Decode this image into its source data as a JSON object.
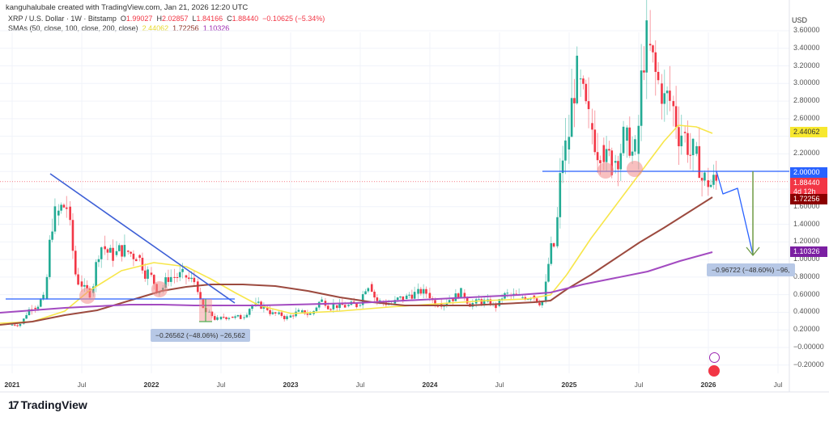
{
  "credit": "kanguhalubale created with TradingView.com, Jan 21, 2026 12:20 UTC",
  "legend": {
    "symbol": "XRP / U.S. Dollar · 1W · Bitstamp",
    "open_label": "O",
    "open": "1.99027",
    "high_label": "H",
    "high": "2.02857",
    "low_label": "L",
    "low": "1.84166",
    "close_label": "C",
    "close": "1.88440",
    "change": "−0.10625 (−5.34%)",
    "sma_label": "SMAs (50, close, 100, close, 200, close)",
    "sma50": "2.44062",
    "sma100": "1.72256",
    "sma200": "1.10326"
  },
  "axis": {
    "currency": "USD",
    "y_ticks": [
      "3.60000",
      "3.40000",
      "3.20000",
      "3.00000",
      "2.80000",
      "2.60000",
      "2.20000",
      "1.60000",
      "1.40000",
      "1.20000",
      "1.00000",
      "0.80000",
      "0.60000",
      "0.40000",
      "0.20000",
      "−0.00000",
      "−0.20000"
    ],
    "x_ticks": [
      {
        "label": "2021",
        "year": true
      },
      {
        "label": "Jul",
        "year": false
      },
      {
        "label": "2022",
        "year": true
      },
      {
        "label": "Jul",
        "year": false
      },
      {
        "label": "2023",
        "year": true
      },
      {
        "label": "Jul",
        "year": false
      },
      {
        "label": "2024",
        "year": true
      },
      {
        "label": "Jul",
        "year": false
      },
      {
        "label": "2025",
        "year": true
      },
      {
        "label": "Jul",
        "year": false
      },
      {
        "label": "2026",
        "year": true
      },
      {
        "label": "Jul",
        "year": false
      }
    ]
  },
  "price_tags": {
    "sma50": {
      "value": "2.44062",
      "color": "#f7e82f",
      "text_color": "#333333"
    },
    "level": {
      "value": "2.00000",
      "color": "#2962ff"
    },
    "close": {
      "value": "1.88440",
      "sub": "4d 12h",
      "color": "#f23645"
    },
    "sma100": {
      "value": "1.72256",
      "color": "#8b0000"
    },
    "sma200": {
      "value": "1.10326",
      "color": "#7b1fa2"
    }
  },
  "measurements": {
    "left": "−0.26562 (−48.06%) −26,562",
    "right": "−0.96722 (−48.60%) −96,"
  },
  "brand": {
    "logo": "17",
    "name": "TradingView"
  },
  "colors": {
    "up": "#22ab94",
    "down": "#f23645",
    "sma50": "#f7e64a",
    "sma100": "#9c4a3f",
    "sma200": "#a34bc1",
    "trendline": "#3d5fd6",
    "support": "#2962ff",
    "projection": "#2962ff",
    "target_arrow": "#6f9a44"
  },
  "chart_data": {
    "type": "candlestick",
    "title": "XRP / U.S. Dollar · 1W · Bitstamp",
    "xlabel": "",
    "ylabel": "USD",
    "ylim": [
      -0.3,
      3.7
    ],
    "x_range": [
      "2021-01",
      "2026-09"
    ],
    "grid": true,
    "series": [
      {
        "name": "XRP weekly (approx. closes)",
        "points": [
          [
            "2021-01",
            0.27
          ],
          [
            "2021-02",
            0.45
          ],
          [
            "2021-03",
            0.55
          ],
          [
            "2021-04",
            1.5
          ],
          [
            "2021-05",
            1.6
          ],
          [
            "2021-06",
            0.75
          ],
          [
            "2021-07",
            0.62
          ],
          [
            "2021-08",
            1.15
          ],
          [
            "2021-09",
            1.05
          ],
          [
            "2021-10",
            1.1
          ],
          [
            "2021-11",
            1.05
          ],
          [
            "2021-12",
            0.85
          ],
          [
            "2022-01",
            0.65
          ],
          [
            "2022-02",
            0.8
          ],
          [
            "2022-03",
            0.82
          ],
          [
            "2022-04",
            0.75
          ],
          [
            "2022-05",
            0.4
          ],
          [
            "2022-06",
            0.32
          ],
          [
            "2022-07",
            0.35
          ],
          [
            "2022-08",
            0.34
          ],
          [
            "2022-09",
            0.48
          ],
          [
            "2022-10",
            0.46
          ],
          [
            "2022-11",
            0.38
          ],
          [
            "2022-12",
            0.34
          ],
          [
            "2023-01",
            0.4
          ],
          [
            "2023-02",
            0.38
          ],
          [
            "2023-03",
            0.53
          ],
          [
            "2023-04",
            0.48
          ],
          [
            "2023-05",
            0.47
          ],
          [
            "2023-06",
            0.48
          ],
          [
            "2023-07",
            0.72
          ],
          [
            "2023-08",
            0.52
          ],
          [
            "2023-09",
            0.5
          ],
          [
            "2023-10",
            0.55
          ],
          [
            "2023-11",
            0.61
          ],
          [
            "2023-12",
            0.62
          ],
          [
            "2024-01",
            0.5
          ],
          [
            "2024-02",
            0.55
          ],
          [
            "2024-03",
            0.62
          ],
          [
            "2024-04",
            0.5
          ],
          [
            "2024-05",
            0.52
          ],
          [
            "2024-06",
            0.47
          ],
          [
            "2024-07",
            0.6
          ],
          [
            "2024-08",
            0.57
          ],
          [
            "2024-09",
            0.59
          ],
          [
            "2024-10",
            0.52
          ],
          [
            "2024-11",
            1.15
          ],
          [
            "2024-12",
            2.25
          ],
          [
            "2025-01",
            3.05
          ],
          [
            "2025-02",
            2.55
          ],
          [
            "2025-03",
            2.3
          ],
          [
            "2025-04",
            2.1
          ],
          [
            "2025-05",
            2.35
          ],
          [
            "2025-06",
            2.2
          ],
          [
            "2025-07",
            3.45
          ],
          [
            "2025-08",
            3.0
          ],
          [
            "2025-09",
            2.8
          ],
          [
            "2025-10",
            2.45
          ],
          [
            "2025-11",
            2.2
          ],
          [
            "2025-12",
            1.9
          ],
          [
            "2026-01",
            1.88
          ]
        ]
      },
      {
        "name": "SMA 50",
        "last": 2.44062
      },
      {
        "name": "SMA 100",
        "last": 1.72256
      },
      {
        "name": "SMA 200",
        "last": 1.10326
      }
    ],
    "annotations": [
      {
        "type": "descending_trendline",
        "from": [
          "2021-04",
          1.98
        ],
        "to": [
          "2022-07",
          0.53
        ]
      },
      {
        "type": "horizontal_support",
        "value": 0.56,
        "range": [
          "2021-01",
          "2022-07"
        ]
      },
      {
        "type": "horizontal_support",
        "value": 2.0,
        "range": [
          "2024-11",
          "2026-08"
        ]
      },
      {
        "type": "measure",
        "text": "−0.26562 (−48.06%) −26,562"
      },
      {
        "type": "measure",
        "text": "−0.96722 (−48.60%) −96,"
      },
      {
        "type": "projection_path",
        "target": 1.03
      }
    ]
  }
}
